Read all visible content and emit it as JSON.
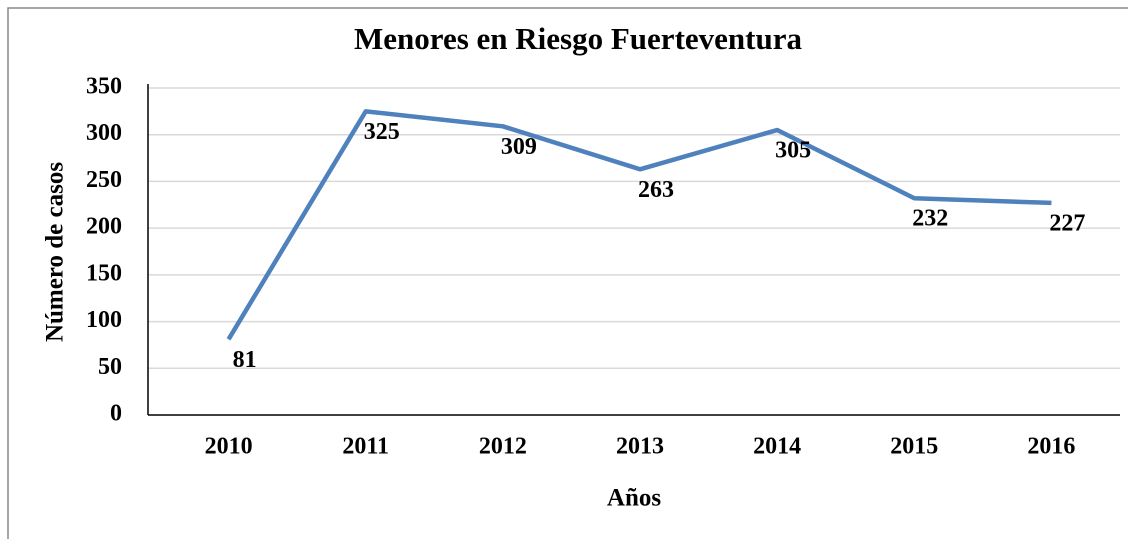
{
  "chart_data": {
    "type": "line",
    "title": "Menores en Riesgo Fuerteventura",
    "x_label": "Años",
    "y_label": "Número de casos",
    "categories": [
      "2010",
      "2011",
      "2012",
      "2013",
      "2014",
      "2015",
      "2016"
    ],
    "series": [
      {
        "name": "Menores en Riesgo",
        "color": "#4f81bd",
        "values": [
          81,
          325,
          309,
          263,
          305,
          232,
          227
        ]
      }
    ],
    "ylim": [
      0,
      350
    ],
    "yticks": [
      0,
      50,
      100,
      150,
      200,
      250,
      300,
      350
    ],
    "grid": true
  }
}
